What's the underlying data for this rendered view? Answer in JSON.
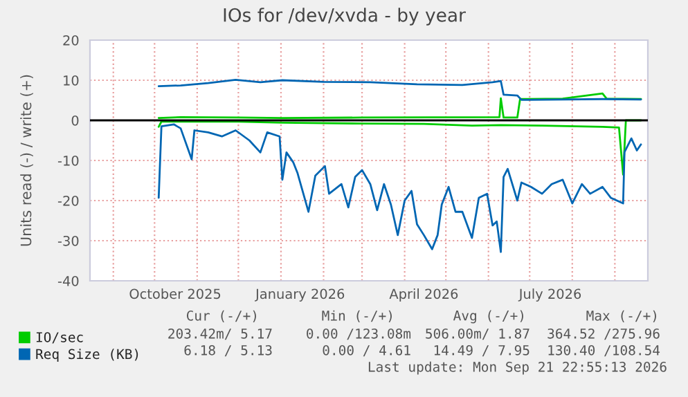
{
  "chart_data": {
    "type": "line",
    "title": "IOs for /dev/xvda - by year",
    "ylabel": "Units read (-) / write (+)",
    "xlim": [
      "2025-08-15",
      "2026-09-25"
    ],
    "ylim": [
      -40,
      20
    ],
    "yticks": [
      -40,
      -30,
      -20,
      -10,
      0,
      10,
      20
    ],
    "xticks": [
      {
        "value": "2025-09-01",
        "label": null
      },
      {
        "value": "2025-10-01",
        "label": null
      },
      {
        "value": "2025-10-16",
        "label": "October 2025"
      },
      {
        "value": "2025-11-01",
        "label": null
      },
      {
        "value": "2025-12-01",
        "label": null
      },
      {
        "value": "2026-01-01",
        "label": null
      },
      {
        "value": "2026-01-15",
        "label": "January 2026"
      },
      {
        "value": "2026-02-01",
        "label": null
      },
      {
        "value": "2026-03-01",
        "label": null
      },
      {
        "value": "2026-04-01",
        "label": null
      },
      {
        "value": "2026-04-15",
        "label": "April 2026"
      },
      {
        "value": "2026-05-01",
        "label": null
      },
      {
        "value": "2026-06-01",
        "label": null
      },
      {
        "value": "2026-07-01",
        "label": null
      },
      {
        "value": "2026-07-16",
        "label": "July 2026"
      },
      {
        "value": "2026-08-01",
        "label": null
      },
      {
        "value": "2026-09-01",
        "label": null
      }
    ],
    "grid": true,
    "legend": "bottom",
    "line_style": "solid",
    "ref_lines": [
      {
        "axis": "y",
        "value": 0,
        "color": "#000000"
      }
    ],
    "series": [
      {
        "name": "IO/sec",
        "color": "#00cc00",
        "x": [
          "2025-10-04",
          "2025-10-20",
          "2025-12-01",
          "2026-01-02",
          "2026-03-01",
          "2026-06-09",
          "2026-06-10",
          "2026-06-12",
          "2026-06-22",
          "2026-06-24",
          "2026-07-25",
          "2026-08-23",
          "2026-08-26",
          "2026-09-20"
        ],
        "values": [
          0.6,
          0.8,
          0.7,
          0.6,
          0.7,
          0.8,
          5.5,
          0.7,
          0.7,
          5.3,
          5.4,
          6.7,
          5.4,
          5.3
        ]
      },
      {
        "color": "#00cc00",
        "x": [
          "2025-10-04",
          "2025-10-06",
          "2025-12-01",
          "2026-01-02",
          "2026-03-01",
          "2026-04-15",
          "2026-05-20",
          "2026-06-10",
          "2026-07-10",
          "2026-08-23",
          "2026-09-04",
          "2026-09-07",
          "2026-09-09",
          "2026-09-20"
        ],
        "values": [
          -1.6,
          -0.3,
          -0.3,
          -0.6,
          -0.8,
          -0.9,
          -1.3,
          -1.2,
          -1.3,
          -1.6,
          -1.8,
          -13.5,
          0,
          0
        ]
      },
      {
        "name": "Req Size (KB)",
        "color": "#0066b3",
        "x": [
          "2025-10-04",
          "2025-10-20",
          "2025-11-09",
          "2025-11-29",
          "2025-12-17",
          "2026-01-02",
          "2026-02-01",
          "2026-03-07",
          "2026-04-10",
          "2026-05-13",
          "2026-06-04",
          "2026-06-10",
          "2026-06-12",
          "2026-06-22",
          "2026-06-25",
          "2026-07-25",
          "2026-08-23",
          "2026-09-20"
        ],
        "values": [
          8.5,
          8.7,
          9.3,
          10.1,
          9.5,
          10.0,
          9.6,
          9.5,
          9.0,
          8.8,
          9.5,
          9.8,
          6.4,
          6.2,
          5.1,
          5.2,
          5.3,
          5.2
        ]
      },
      {
        "color": "#0066b3",
        "x": [
          "2025-10-04",
          "2025-10-06",
          "2025-10-15",
          "2025-10-20",
          "2025-10-28",
          "2025-10-30",
          "2025-11-09",
          "2025-11-19",
          "2025-11-29",
          "2025-12-09",
          "2025-12-17",
          "2025-12-22",
          "2025-12-31",
          "2026-01-02",
          "2026-01-05",
          "2026-01-10",
          "2026-01-13",
          "2026-01-21",
          "2026-01-26",
          "2026-02-02",
          "2026-02-05",
          "2026-02-14",
          "2026-02-19",
          "2026-02-24",
          "2026-03-01",
          "2026-03-07",
          "2026-03-12",
          "2026-03-17",
          "2026-03-22",
          "2026-03-27",
          "2026-04-01",
          "2026-04-06",
          "2026-04-10",
          "2026-04-15",
          "2026-04-21",
          "2026-04-25",
          "2026-04-28",
          "2026-05-03",
          "2026-05-08",
          "2026-05-13",
          "2026-05-20",
          "2026-05-25",
          "2026-05-31",
          "2026-06-04",
          "2026-06-07",
          "2026-06-10",
          "2026-06-12",
          "2026-06-15",
          "2026-06-22",
          "2026-06-25",
          "2026-07-02",
          "2026-07-10",
          "2026-07-17",
          "2026-07-25",
          "2026-08-01",
          "2026-08-08",
          "2026-08-14",
          "2026-08-23",
          "2026-08-29",
          "2026-09-07",
          "2026-09-08",
          "2026-09-13",
          "2026-09-17",
          "2026-09-20"
        ],
        "values": [
          -19.3,
          -1.5,
          -1.0,
          -2.0,
          -9.7,
          -2.5,
          -3.0,
          -4.0,
          -2.5,
          -5.0,
          -8.0,
          -3.0,
          -4.0,
          -14.8,
          -8.0,
          -10.5,
          -13.1,
          -22.8,
          -13.8,
          -11.4,
          -18.3,
          -15.9,
          -21.7,
          -14.1,
          -12.4,
          -15.9,
          -22.4,
          -15.9,
          -21.0,
          -28.6,
          -20.0,
          -17.6,
          -25.9,
          -28.6,
          -32.1,
          -28.6,
          -21.0,
          -16.6,
          -22.8,
          -22.8,
          -29.3,
          -19.3,
          -18.3,
          -26.2,
          -25.2,
          -32.8,
          -14.1,
          -12.1,
          -20.0,
          -15.5,
          -16.6,
          -18.3,
          -15.9,
          -14.8,
          -20.7,
          -15.9,
          -18.3,
          -16.6,
          -19.3,
          -20.7,
          -7.9,
          -4.5,
          -7.5,
          -6.0
        ]
      }
    ],
    "annotations": [
      "Cur (-/+)",
      "Min (-/+)",
      "Avg (-/+)",
      "Max (-/+)",
      "203.42m/ 5.17",
      "0.00 /123.08m",
      "506.00m/ 1.87",
      "364.52 /275.96",
      "6.18 / 5.13",
      "0.00 / 4.61",
      "14.49 / 7.95",
      "130.40 /108.54",
      "Last update: Mon Sep 21 22:55:13 2026"
    ]
  }
}
